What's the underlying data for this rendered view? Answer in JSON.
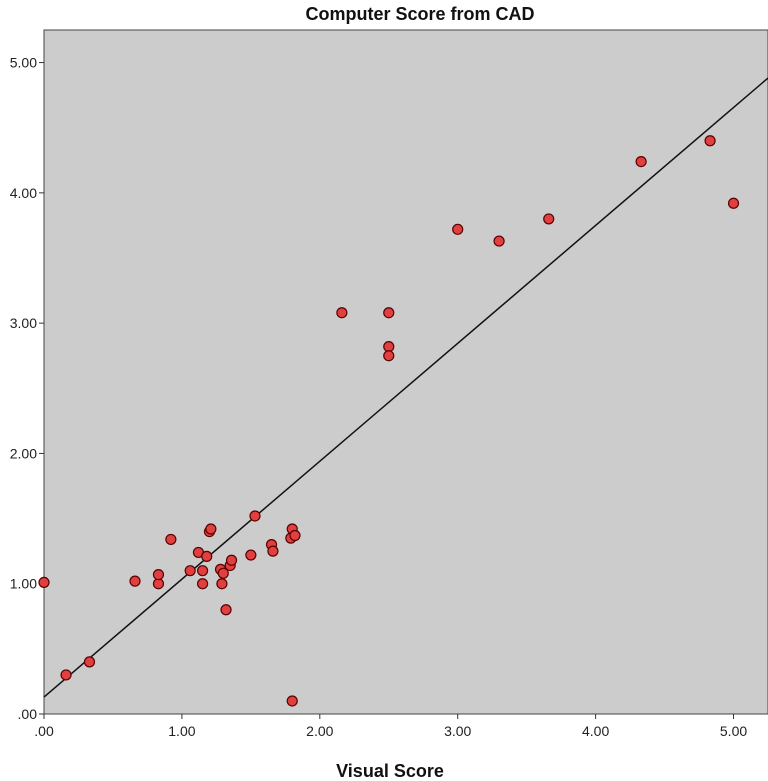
{
  "chart_data": {
    "type": "scatter",
    "title": "Computer Score from CAD",
    "xlabel": "Visual Score",
    "ylabel": "",
    "xlim": [
      0,
      5.25
    ],
    "ylim": [
      0,
      5.25
    ],
    "x_ticks": [
      0,
      1,
      2,
      3,
      4,
      5
    ],
    "y_ticks": [
      0,
      1,
      2,
      3,
      4,
      5
    ],
    "x_tick_labels": [
      ".00",
      "1.00",
      "2.00",
      "3.00",
      "4.00",
      "5.00"
    ],
    "y_tick_labels": [
      ".00",
      "1.00",
      "2.00",
      "3.00",
      "4.00",
      "5.00"
    ],
    "grid": false,
    "plot_background": "#cccccc",
    "marker_color": "#e04040",
    "marker_edge": "#5a0000",
    "fit_line": {
      "intercept": 0.13,
      "slope": 0.905
    },
    "points": [
      {
        "x": 0.0,
        "y": 1.01
      },
      {
        "x": 0.16,
        "y": 0.3
      },
      {
        "x": 0.33,
        "y": 0.4
      },
      {
        "x": 0.66,
        "y": 1.02
      },
      {
        "x": 0.83,
        "y": 1.0
      },
      {
        "x": 0.83,
        "y": 1.07
      },
      {
        "x": 0.92,
        "y": 1.34
      },
      {
        "x": 1.06,
        "y": 1.1
      },
      {
        "x": 1.12,
        "y": 1.24
      },
      {
        "x": 1.15,
        "y": 1.1
      },
      {
        "x": 1.15,
        "y": 1.0
      },
      {
        "x": 1.18,
        "y": 1.21
      },
      {
        "x": 1.2,
        "y": 1.4
      },
      {
        "x": 1.21,
        "y": 1.42
      },
      {
        "x": 1.28,
        "y": 1.11
      },
      {
        "x": 1.29,
        "y": 1.0
      },
      {
        "x": 1.3,
        "y": 1.08
      },
      {
        "x": 1.32,
        "y": 0.8
      },
      {
        "x": 1.35,
        "y": 1.14
      },
      {
        "x": 1.36,
        "y": 1.18
      },
      {
        "x": 1.5,
        "y": 1.22
      },
      {
        "x": 1.53,
        "y": 1.52
      },
      {
        "x": 1.65,
        "y": 1.3
      },
      {
        "x": 1.66,
        "y": 1.25
      },
      {
        "x": 1.79,
        "y": 1.35
      },
      {
        "x": 1.8,
        "y": 1.42
      },
      {
        "x": 1.82,
        "y": 1.37
      },
      {
        "x": 1.8,
        "y": 0.1
      },
      {
        "x": 2.16,
        "y": 3.08
      },
      {
        "x": 2.5,
        "y": 3.08
      },
      {
        "x": 2.5,
        "y": 2.82
      },
      {
        "x": 2.5,
        "y": 2.75
      },
      {
        "x": 3.0,
        "y": 3.72
      },
      {
        "x": 3.3,
        "y": 3.63
      },
      {
        "x": 3.66,
        "y": 3.8
      },
      {
        "x": 4.33,
        "y": 4.24
      },
      {
        "x": 4.83,
        "y": 4.4
      },
      {
        "x": 5.0,
        "y": 3.92
      }
    ]
  }
}
